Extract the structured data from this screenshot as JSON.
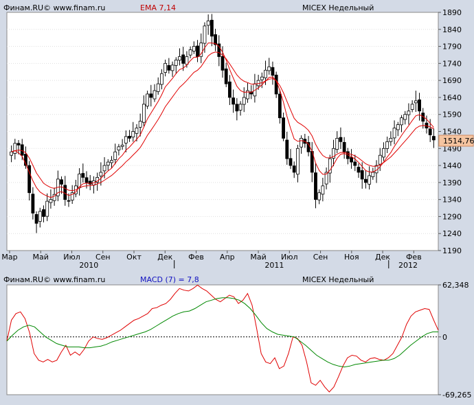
{
  "chart_data": [
    {
      "type": "candlestick",
      "header_left": "Финам.RU© www.finam.ru",
      "indicator_label": "EMA 7,14",
      "instrument": "MICEX Недельный",
      "last_price_label": "1514,76",
      "ylim": [
        1190,
        1890
      ],
      "y_ticks": [
        1190,
        1240,
        1290,
        1340,
        1390,
        1440,
        1490,
        1540,
        1590,
        1640,
        1690,
        1740,
        1790,
        1840,
        1890
      ],
      "x_month_labels": [
        "Мар",
        "Май",
        "Июл",
        "Сен",
        "Окт",
        "Дек",
        "Фев",
        "Апр",
        "Май",
        "Июл",
        "Сен",
        "Ноя",
        "Дек",
        "Фев"
      ],
      "x_year_labels": [
        "2010",
        "2011",
        "2012"
      ],
      "colors": {
        "up": "#ffffff",
        "down": "#000000",
        "ema_fast": "#e00000",
        "ema_slow": "#e00000",
        "label_box": "#f5c4a0"
      },
      "closes": [
        1480,
        1505,
        1500,
        1470,
        1440,
        1360,
        1300,
        1270,
        1305,
        1290,
        1335,
        1340,
        1355,
        1400,
        1385,
        1340,
        1335,
        1360,
        1380,
        1415,
        1405,
        1390,
        1385,
        1395,
        1405,
        1420,
        1440,
        1450,
        1455,
        1480,
        1495,
        1500,
        1525,
        1520,
        1540,
        1550,
        1570,
        1620,
        1650,
        1640,
        1660,
        1680,
        1710,
        1740,
        1720,
        1735,
        1750,
        1760,
        1740,
        1760,
        1780,
        1790,
        1760,
        1800,
        1850,
        1865,
        1820,
        1795,
        1760,
        1720,
        1680,
        1640,
        1620,
        1600,
        1620,
        1640,
        1660,
        1650,
        1680,
        1690,
        1700,
        1720,
        1730,
        1705,
        1650,
        1580,
        1520,
        1460,
        1440,
        1420,
        1490,
        1520,
        1505,
        1480,
        1420,
        1340,
        1360,
        1380,
        1420,
        1460,
        1490,
        1520,
        1510,
        1480,
        1460,
        1450,
        1440,
        1420,
        1400,
        1390,
        1410,
        1420,
        1440,
        1470,
        1490,
        1510,
        1520,
        1550,
        1560,
        1580,
        1590,
        1600,
        1620,
        1630,
        1600,
        1570,
        1550,
        1530,
        1515
      ],
      "ema_fast": [
        1480,
        1484,
        1477,
        1467,
        1445,
        1420,
        1395,
        1375,
        1362,
        1355,
        1350,
        1346,
        1350,
        1360,
        1363,
        1358,
        1352,
        1355,
        1362,
        1378,
        1386,
        1388,
        1387,
        1389,
        1394,
        1402,
        1414,
        1424,
        1432,
        1446,
        1460,
        1470,
        1485,
        1494,
        1506,
        1517,
        1530,
        1553,
        1577,
        1594,
        1611,
        1628,
        1648,
        1671,
        1683,
        1696,
        1710,
        1722,
        1726,
        1735,
        1748,
        1758,
        1758,
        1768,
        1786,
        1800,
        1800,
        1798,
        1790,
        1773,
        1750,
        1722,
        1697,
        1673,
        1660,
        1655,
        1656,
        1655,
        1661,
        1668,
        1677,
        1688,
        1699,
        1700,
        1688,
        1661,
        1626,
        1584,
        1549,
        1518,
        1511,
        1513,
        1511,
        1503,
        1482,
        1447,
        1425,
        1414,
        1415,
        1426,
        1442,
        1461,
        1473,
        1475,
        1471,
        1466,
        1459,
        1449,
        1437,
        1425,
        1421,
        1421,
        1426,
        1436,
        1450,
        1465,
        1478,
        1496,
        1512,
        1528,
        1543,
        1557,
        1572,
        1586,
        1589,
        1584,
        1576,
        1564,
        1552
      ]
    },
    {
      "type": "line",
      "header_left": "Финам.RU© www.finam.ru",
      "indicator_label": "MACD (7) = 7,8",
      "instrument": "MICEX Недельный",
      "ylim": [
        -69.265,
        62.348
      ],
      "y_ticks": [
        62.348,
        0,
        -69.265
      ],
      "y_tick_labels": [
        "62,348",
        "0",
        "-69,265"
      ],
      "colors": {
        "macd": "#e00000",
        "signal": "#008800",
        "zero": "#000000"
      },
      "series": [
        {
          "values": [
            -5,
            20,
            28,
            30,
            22,
            5,
            -20,
            -28,
            -30,
            -27,
            -30,
            -28,
            -18,
            -10,
            -22,
            -18,
            -22,
            -15,
            -5,
            0,
            -2,
            -3,
            -1,
            2,
            5,
            8,
            12,
            16,
            20,
            22,
            25,
            28,
            34,
            35,
            38,
            40,
            45,
            52,
            58,
            56,
            55,
            58,
            62,
            58,
            55,
            50,
            45,
            42,
            46,
            50,
            48,
            40,
            44,
            52,
            38,
            10,
            -20,
            -30,
            -32,
            -25,
            -38,
            -35,
            -20,
            0,
            -2,
            -10,
            -30,
            -55,
            -58,
            -52,
            -60,
            -66,
            -60,
            -48,
            -35,
            -25,
            -22,
            -23,
            -28,
            -30,
            -26,
            -25,
            -27,
            -28,
            -25,
            -20,
            -10,
            0,
            15,
            25,
            30,
            32,
            34,
            33,
            20,
            8
          ]
        },
        {
          "values": [
            -5,
            2,
            8,
            12,
            14,
            12,
            6,
            0,
            -4,
            -8,
            -10,
            -12,
            -12,
            -12,
            -13,
            -13,
            -12,
            -11,
            -9,
            -6,
            -4,
            -2,
            0,
            2,
            4,
            6,
            9,
            13,
            17,
            21,
            25,
            28,
            30,
            31,
            34,
            38,
            42,
            44,
            46,
            47,
            47,
            46,
            44,
            40,
            34,
            26,
            17,
            10,
            6,
            3,
            2,
            1,
            0,
            -5,
            -10,
            -16,
            -22,
            -26,
            -30,
            -33,
            -35,
            -36,
            -35,
            -33,
            -32,
            -31,
            -30,
            -29,
            -28,
            -28,
            -26,
            -22,
            -16,
            -10,
            -5,
            0,
            4,
            6,
            6
          ]
        }
      ]
    }
  ]
}
